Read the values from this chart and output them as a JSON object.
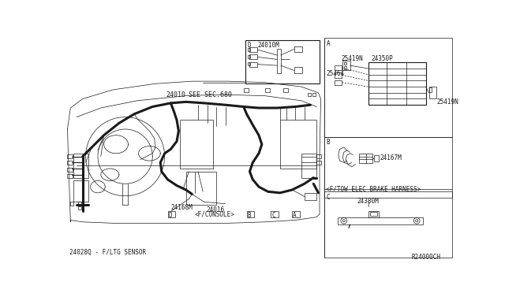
{
  "bg_color": "#ffffff",
  "line_color": "#1a1a1a",
  "thin": 0.5,
  "med": 0.8,
  "thick": 2.2,
  "fig_width": 6.4,
  "fig_height": 3.72,
  "dpi": 100,
  "labels": {
    "main_part": "24010",
    "see_sec": "SEE SEC.680",
    "part_d_label": "24168M",
    "part_console_1": "24016",
    "part_console_2": "<F/CONSOLE>",
    "bottom_label": "24028Q - F/LTG SENSOR",
    "ref_code": "R24000CH",
    "inset_label": "24010M",
    "inset_d_label": "D",
    "part_25419N_top": "25419N",
    "part_24350P": "24350P",
    "part_25464": "25464",
    "part_25419N_bot": "25419N",
    "part_24167M": "24167M",
    "ftow_label": "<F/TOW ELEC BRAKE HARNESS>",
    "part_24380M": "24380M",
    "sec_A": "A",
    "sec_B": "B",
    "sec_C": "C",
    "sec_D": "D"
  },
  "fs": 5.5,
  "fm": 6.0
}
